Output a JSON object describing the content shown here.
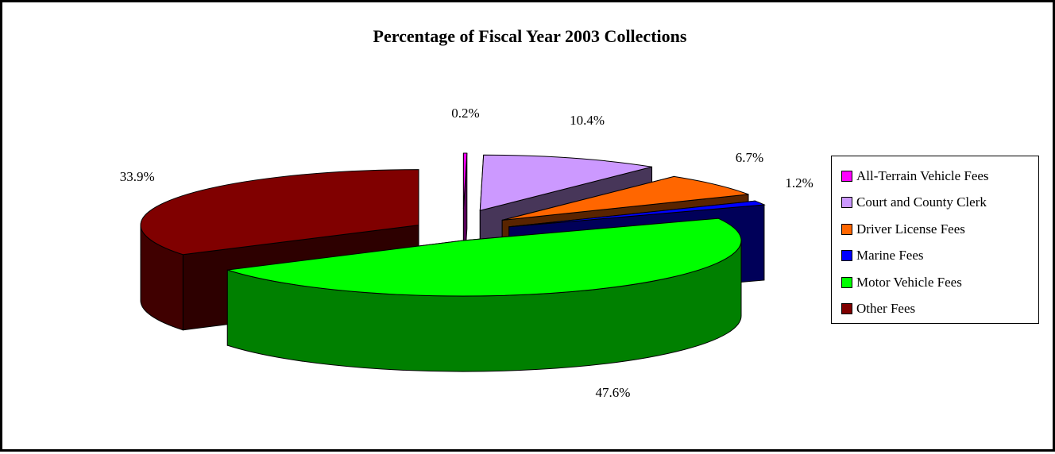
{
  "chart_data": {
    "type": "pie",
    "title": "Percentage of Fiscal Year 2003 Collections",
    "legend_position": "right",
    "slices": [
      {
        "name": "All-Terrain Vehicle Fees",
        "value": 0.2,
        "label": "0.2%",
        "color": "#FF00FF",
        "exploded": true
      },
      {
        "name": "Court and County Clerk",
        "value": 10.4,
        "label": "10.4%",
        "color": "#CC99FF",
        "exploded": true
      },
      {
        "name": "Driver License Fees",
        "value": 6.7,
        "label": "6.7%",
        "color": "#FF6600",
        "exploded": true
      },
      {
        "name": "Marine Fees",
        "value": 1.2,
        "label": "1.2%",
        "color": "#0000FF",
        "exploded": true
      },
      {
        "name": "Motor Vehicle Fees",
        "value": 47.6,
        "label": "47.6%",
        "color": "#00FF00",
        "exploded": false
      },
      {
        "name": "Other Fees",
        "value": 33.9,
        "label": "33.9%",
        "color": "#800000",
        "exploded": true
      }
    ]
  }
}
